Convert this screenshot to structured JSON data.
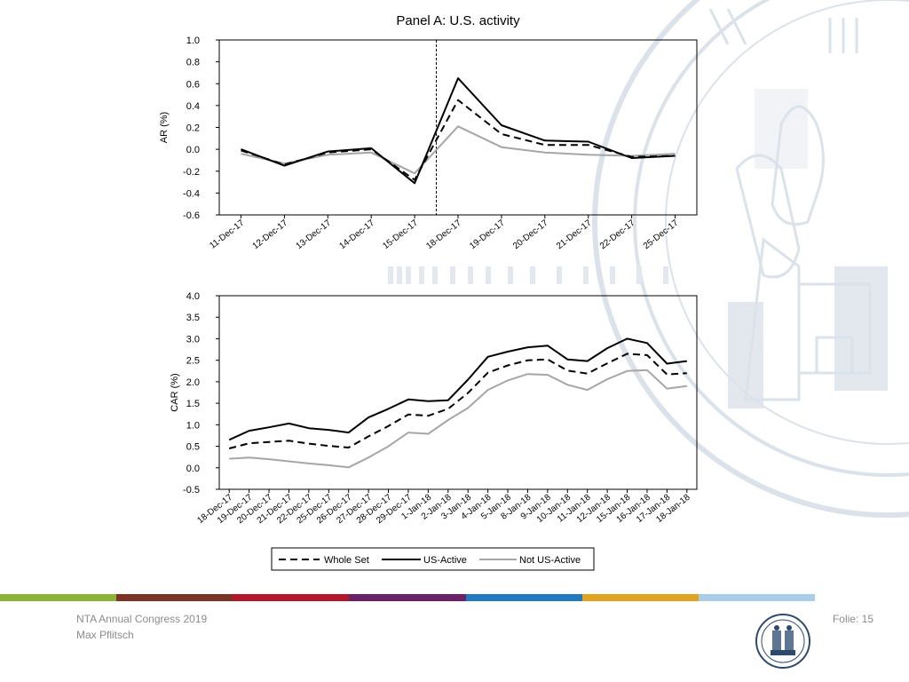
{
  "footer": {
    "event": "NTA Annual Congress 2019",
    "author": "Max Pflitsch",
    "slide_label": "Folie: 15"
  },
  "colors": {
    "strip": [
      "#8db336",
      "#7a3324",
      "#b3172c",
      "#6b2166",
      "#1f7ac0",
      "#e0a323",
      "#a9cde8"
    ],
    "series_whole_set": "#000000",
    "series_us_active": "#000000",
    "series_not_us_active": "#a6a6a6",
    "background_seal": "#dbe2ea"
  },
  "icons": {
    "logo": "university-seal-icon",
    "background": "university-seal-watermark"
  },
  "chart_data": [
    {
      "type": "line",
      "title": "Panel A: U.S. activity",
      "xlabel": "",
      "ylabel": "AR (%)",
      "ylim": [
        -0.6,
        1.0
      ],
      "yticks": [
        "1.0",
        "0.8",
        "0.6",
        "0.4",
        "0.2",
        "0.0",
        "-0.2",
        "-0.4",
        "-0.6"
      ],
      "yticks_values": [
        1.0,
        0.8,
        0.6,
        0.4,
        0.2,
        0.0,
        -0.2,
        -0.4,
        -0.6
      ],
      "categories": [
        "11-Dec-17",
        "12-Dec-17",
        "13-Dec-17",
        "14-Dec-17",
        "15-Dec-17",
        "18-Dec-17",
        "19-Dec-17",
        "20-Dec-17",
        "21-Dec-17",
        "22-Dec-17",
        "25-Dec-17"
      ],
      "event_marker_between": [
        "15-Dec-17",
        "18-Dec-17"
      ],
      "grid": false,
      "series": [
        {
          "name": "Whole Set",
          "style": "dashed",
          "values": [
            -0.01,
            -0.14,
            -0.03,
            0.0,
            -0.28,
            0.45,
            0.14,
            0.04,
            0.04,
            -0.07,
            -0.06
          ]
        },
        {
          "name": "US-Active",
          "style": "solid",
          "values": [
            0.0,
            -0.15,
            -0.02,
            0.01,
            -0.31,
            0.65,
            0.22,
            0.08,
            0.07,
            -0.08,
            -0.06
          ]
        },
        {
          "name": "Not US-Active",
          "style": "gray",
          "values": [
            -0.04,
            -0.13,
            -0.05,
            -0.03,
            -0.22,
            0.21,
            0.02,
            -0.03,
            -0.05,
            -0.06,
            -0.04
          ]
        }
      ]
    },
    {
      "type": "line",
      "title": "",
      "xlabel": "",
      "ylabel": "CAR (%)",
      "ylim": [
        -0.5,
        4.0
      ],
      "yticks": [
        "4.0",
        "3.5",
        "3.0",
        "2.5",
        "2.0",
        "1.5",
        "1.0",
        "0.5",
        "0.0",
        "-0.5"
      ],
      "yticks_values": [
        4.0,
        3.5,
        3.0,
        2.5,
        2.0,
        1.5,
        1.0,
        0.5,
        0.0,
        -0.5
      ],
      "categories": [
        "18-Dec-17",
        "19-Dec-17",
        "20-Dec-17",
        "21-Dec-17",
        "22-Dec-17",
        "25-Dec-17",
        "26-Dec-17",
        "27-Dec-17",
        "28-Dec-17",
        "29-Dec-17",
        "1-Jan-18",
        "2-Jan-18",
        "3-Jan-18",
        "4-Jan-18",
        "5-Jan-18",
        "8-Jan-18",
        "9-Jan-18",
        "10-Jan-18",
        "11-Jan-18",
        "12-Jan-18",
        "15-Jan-18",
        "16-Jan-18",
        "17-Jan-18",
        "18-Jan-18"
      ],
      "grid": false,
      "series": [
        {
          "name": "Whole Set",
          "style": "dashed",
          "values": [
            0.45,
            0.57,
            0.6,
            0.63,
            0.56,
            0.51,
            0.47,
            0.73,
            0.97,
            1.24,
            1.21,
            1.37,
            1.74,
            2.21,
            2.38,
            2.5,
            2.52,
            2.26,
            2.19,
            2.43,
            2.65,
            2.62,
            2.17,
            2.2
          ]
        },
        {
          "name": "US-Active",
          "style": "solid",
          "values": [
            0.65,
            0.86,
            0.94,
            1.03,
            0.92,
            0.88,
            0.82,
            1.17,
            1.37,
            1.59,
            1.55,
            1.57,
            2.05,
            2.58,
            2.7,
            2.8,
            2.84,
            2.52,
            2.48,
            2.78,
            3.0,
            2.9,
            2.42,
            2.48
          ]
        },
        {
          "name": "Not US-Active",
          "style": "gray",
          "values": [
            0.21,
            0.24,
            0.2,
            0.15,
            0.1,
            0.06,
            0.01,
            0.24,
            0.5,
            0.82,
            0.79,
            1.11,
            1.39,
            1.81,
            2.03,
            2.18,
            2.16,
            1.93,
            1.81,
            2.06,
            2.25,
            2.27,
            1.84,
            1.9
          ]
        }
      ]
    }
  ],
  "legend": {
    "items": [
      "Whole Set",
      "US-Active",
      "Not US-Active"
    ]
  }
}
